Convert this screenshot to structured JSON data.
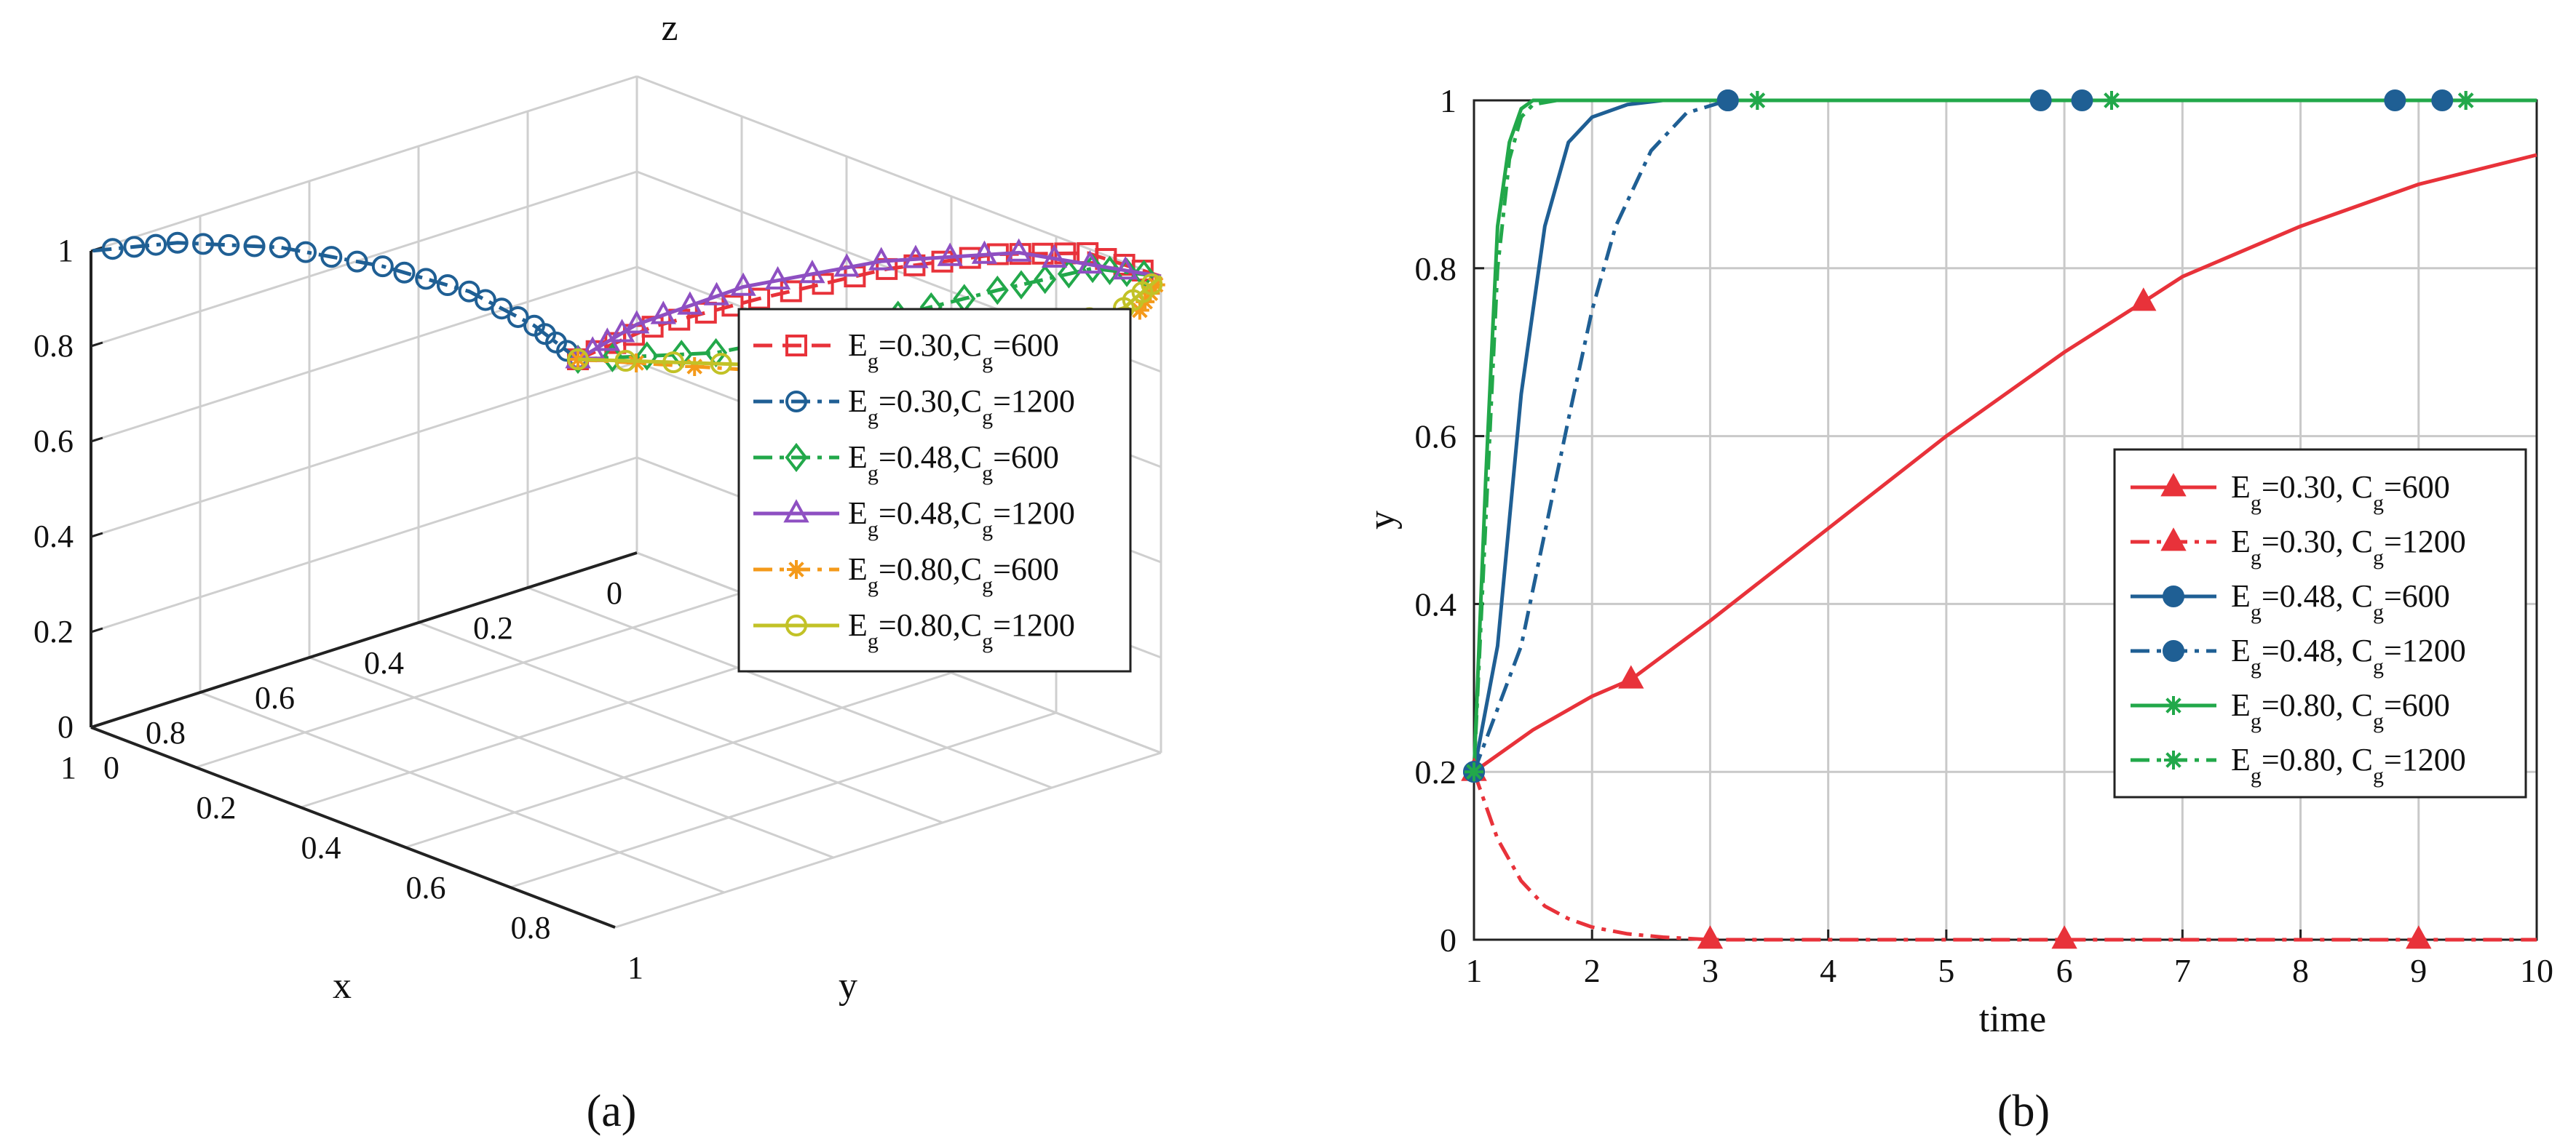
{
  "panel_labels": {
    "a": "(a)",
    "b": "(b)"
  },
  "chart_data": [
    {
      "type": "line",
      "projection": "3d",
      "xlabel": "x",
      "ylabel": "y",
      "zlabel": "z",
      "xlim": [
        0,
        1
      ],
      "ylim": [
        0,
        1
      ],
      "zlim": [
        0,
        1
      ],
      "x_ticks": [
        "0",
        "0.2",
        "0.4",
        "0.6",
        "0.8",
        "1"
      ],
      "y_ticks": [
        "0",
        "0.2",
        "0.4",
        "0.6",
        "0.8",
        "1"
      ],
      "z_ticks": [
        "0",
        "0.2",
        "0.4",
        "0.6",
        "0.8",
        "1"
      ],
      "grid": true,
      "legend_position": "right",
      "series": [
        {
          "name": "0.30",
          "sub": "600",
          "color": "#e8323a",
          "marker": "square",
          "dash": "dash",
          "points": [
            [
              0.3,
              0.2,
              0.6
            ],
            [
              0.24,
              0.28,
              0.68
            ],
            [
              0.16,
              0.4,
              0.76
            ],
            [
              0.08,
              0.56,
              0.86
            ],
            [
              0.03,
              0.72,
              0.94
            ],
            [
              0.0,
              0.86,
              0.99
            ],
            [
              0.0,
              1.0,
              1.0
            ]
          ]
        },
        {
          "name": "0.30",
          "sub": "1200",
          "color": "#1f5f94",
          "marker": "circle",
          "dash": "dashdot",
          "points": [
            [
              0.3,
              0.2,
              0.6
            ],
            [
              0.38,
              0.2,
              0.7
            ],
            [
              0.48,
              0.18,
              0.8
            ],
            [
              0.6,
              0.14,
              0.88
            ],
            [
              0.74,
              0.09,
              0.95
            ],
            [
              0.88,
              0.04,
              0.99
            ],
            [
              1.0,
              0.0,
              1.0
            ]
          ]
        },
        {
          "name": "0.48",
          "sub": "600",
          "color": "#22a84a",
          "marker": "diamond",
          "dash": "dashdot",
          "points": [
            [
              0.3,
              0.2,
              0.6
            ],
            [
              0.22,
              0.38,
              0.66
            ],
            [
              0.12,
              0.56,
              0.76
            ],
            [
              0.05,
              0.74,
              0.88
            ],
            [
              0.01,
              0.88,
              0.97
            ],
            [
              0.0,
              1.0,
              1.0
            ]
          ]
        },
        {
          "name": "0.48",
          "sub": "1200",
          "color": "#8e4fc2",
          "marker": "triangle",
          "dash": "solid",
          "points": [
            [
              0.3,
              0.2,
              0.6
            ],
            [
              0.25,
              0.26,
              0.68
            ],
            [
              0.17,
              0.38,
              0.78
            ],
            [
              0.09,
              0.56,
              0.88
            ],
            [
              0.03,
              0.76,
              0.96
            ],
            [
              0.0,
              1.0,
              1.0
            ]
          ]
        },
        {
          "name": "0.80",
          "sub": "600",
          "color": "#f49a1a",
          "marker": "asterisk",
          "dash": "dashdot",
          "points": [
            [
              0.3,
              0.2,
              0.6
            ],
            [
              0.18,
              0.52,
              0.66
            ],
            [
              0.07,
              0.82,
              0.78
            ],
            [
              0.01,
              0.97,
              0.92
            ],
            [
              0.0,
              1.0,
              1.0
            ]
          ]
        },
        {
          "name": "0.80",
          "sub": "1200",
          "color": "#c2c227",
          "marker": "circle",
          "dash": "solid",
          "points": [
            [
              0.3,
              0.2,
              0.6
            ],
            [
              0.2,
              0.46,
              0.66
            ],
            [
              0.09,
              0.76,
              0.78
            ],
            [
              0.02,
              0.95,
              0.92
            ],
            [
              0.0,
              1.0,
              1.0
            ]
          ]
        }
      ]
    },
    {
      "type": "line",
      "xlabel": "time",
      "ylabel": "y",
      "xlim": [
        1,
        10
      ],
      "ylim": [
        0,
        1
      ],
      "x_ticks": [
        1,
        2,
        3,
        4,
        5,
        6,
        7,
        8,
        9,
        10
      ],
      "y_ticks": [
        0,
        0.2,
        0.4,
        0.6,
        0.8,
        1
      ],
      "y_tick_labels": [
        "0",
        "0.2",
        "0.4",
        "0.6",
        "0.8",
        "1"
      ],
      "grid": true,
      "legend_position": "right",
      "series": [
        {
          "name": "0.30",
          "sub": "600",
          "color": "#e8323a",
          "marker": "triangle",
          "dash": "solid",
          "x": [
            1,
            1.5,
            2,
            2.33,
            3,
            4,
            5,
            6,
            6.67,
            7,
            8,
            9,
            10
          ],
          "y": [
            0.2,
            0.25,
            0.29,
            0.31,
            0.38,
            0.49,
            0.6,
            0.7,
            0.76,
            0.79,
            0.85,
            0.9,
            0.935
          ]
        },
        {
          "name": "0.30",
          "sub": "1200",
          "color": "#e8323a",
          "marker": "triangle",
          "dash": "dashdot",
          "x": [
            1,
            1.2,
            1.4,
            1.6,
            1.8,
            2,
            2.3,
            2.6,
            3,
            4,
            6,
            9,
            10
          ],
          "y": [
            0.2,
            0.12,
            0.07,
            0.04,
            0.025,
            0.015,
            0.007,
            0.003,
            0.0,
            0.0,
            0.0,
            0.0,
            0.0
          ]
        },
        {
          "name": "0.48",
          "sub": "600",
          "color": "#1f5f94",
          "marker": "circle",
          "dash": "solid",
          "x": [
            1,
            1.2,
            1.4,
            1.6,
            1.8,
            2,
            2.3,
            2.6,
            3,
            3.15,
            5.8,
            9.2,
            10
          ],
          "y": [
            0.2,
            0.35,
            0.65,
            0.85,
            0.95,
            0.98,
            0.995,
            1.0,
            1.0,
            1.0,
            1.0,
            1.0,
            1.0
          ]
        },
        {
          "name": "0.48",
          "sub": "1200",
          "color": "#1f5f94",
          "marker": "circle",
          "dash": "dashdot",
          "x": [
            1,
            1.4,
            1.8,
            2,
            2.2,
            2.5,
            2.8,
            3.15,
            3.5,
            6.15,
            8.8,
            10
          ],
          "y": [
            0.2,
            0.35,
            0.62,
            0.75,
            0.85,
            0.94,
            0.985,
            1.0,
            1.0,
            1.0,
            1.0,
            1.0
          ]
        },
        {
          "name": "0.80",
          "sub": "600",
          "color": "#22a84a",
          "marker": "asterisk",
          "dash": "solid",
          "x": [
            1,
            1.1,
            1.2,
            1.3,
            1.4,
            1.5,
            1.7,
            2,
            3.4,
            6.4,
            9.4,
            10
          ],
          "y": [
            0.2,
            0.55,
            0.85,
            0.95,
            0.99,
            1.0,
            1.0,
            1.0,
            1.0,
            1.0,
            1.0,
            1.0
          ]
        },
        {
          "name": "0.80",
          "sub": "1200",
          "color": "#22a84a",
          "marker": "asterisk",
          "dash": "dashdot",
          "x": [
            1,
            1.1,
            1.2,
            1.3,
            1.4,
            1.5,
            1.7,
            2,
            3.4,
            6.4,
            9.4,
            10
          ],
          "y": [
            0.2,
            0.5,
            0.8,
            0.93,
            0.98,
            0.995,
            1.0,
            1.0,
            1.0,
            1.0,
            1.0,
            1.0
          ]
        }
      ]
    }
  ]
}
